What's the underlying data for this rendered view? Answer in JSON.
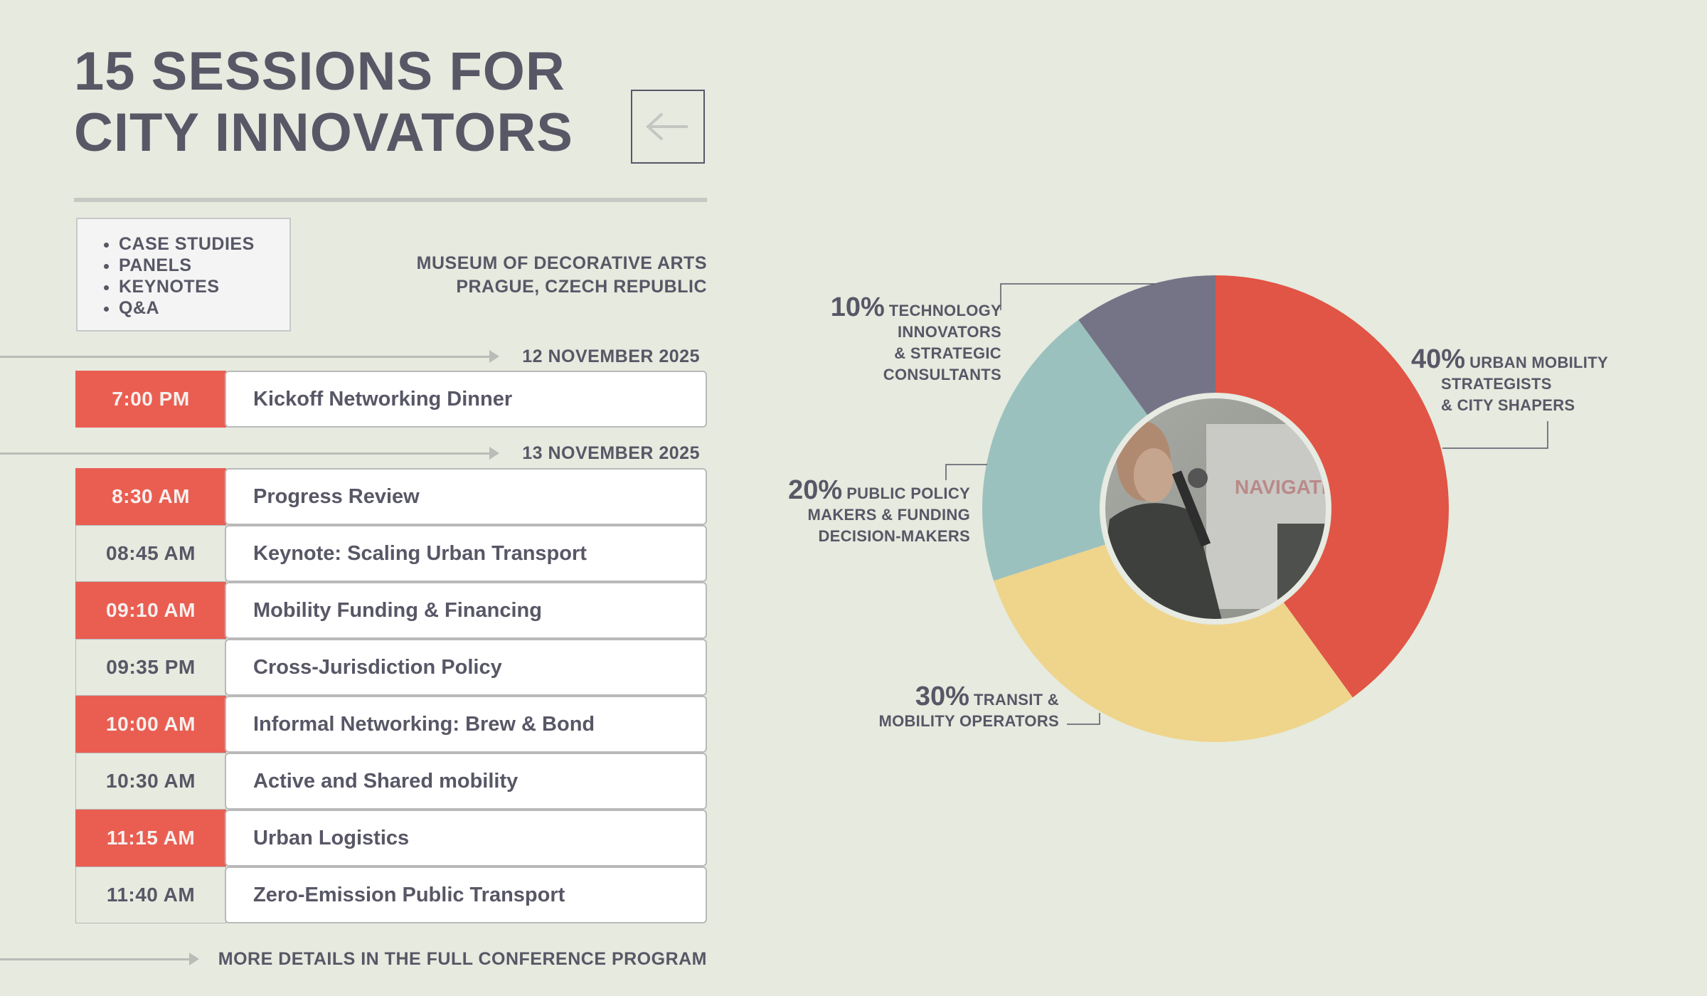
{
  "title": {
    "line1": "15 SESSIONS FOR",
    "line2": "CITY INNOVATORS"
  },
  "back_button": {
    "icon": "arrow-left-icon"
  },
  "session_types": [
    "CASE STUDIES",
    "PANELS",
    "KEYNOTES",
    "Q&A"
  ],
  "venue": {
    "line1": "MUSEUM OF DECORATIVE ARTS",
    "line2": "PRAGUE, CZECH REPUBLIC"
  },
  "days": [
    {
      "date": "12 NOVEMBER 2025",
      "sessions": [
        {
          "time": "7:00 PM",
          "name": "Kickoff Networking Dinner",
          "highlight": true
        }
      ]
    },
    {
      "date": "13 NOVEMBER 2025",
      "sessions": [
        {
          "time": "8:30 AM",
          "name": "Progress Review",
          "highlight": true
        },
        {
          "time": "08:45 AM",
          "name": "Keynote: Scaling Urban Transport",
          "highlight": false
        },
        {
          "time": "09:10 AM",
          "name": "Mobility Funding & Financing",
          "highlight": true
        },
        {
          "time": "09:35 PM",
          "name": "Cross-Jurisdiction Policy",
          "highlight": false
        },
        {
          "time": "10:00 AM",
          "name": "Informal Networking: Brew & Bond",
          "highlight": true
        },
        {
          "time": "10:30 AM",
          "name": "Active and Shared mobility",
          "highlight": false
        },
        {
          "time": "11:15 AM",
          "name": "Urban Logistics",
          "highlight": true
        },
        {
          "time": "11:40 AM",
          "name": "Zero-Emission Public Transport",
          "highlight": false
        }
      ]
    }
  ],
  "footer": {
    "more_label": "MORE DETAILS IN THE FULL CONFERENCE PROGRAM"
  },
  "colors": {
    "accent": "#ea5e52",
    "text": "#575766",
    "background": "#e6eadf",
    "chart": [
      "#e05545",
      "#efd48b",
      "#9bc1be",
      "#757487"
    ]
  },
  "chart_data": {
    "type": "pie",
    "variant": "donut",
    "slices": [
      {
        "value": 40,
        "pct_label": "40%",
        "label_lines": [
          "URBAN MOBILITY",
          "STRATEGISTS",
          "& CITY SHAPERS"
        ],
        "color": "#e05545"
      },
      {
        "value": 30,
        "pct_label": "30%",
        "label_lines": [
          "TRANSIT &",
          "MOBILITY OPERATORS"
        ],
        "color": "#efd48b"
      },
      {
        "value": 20,
        "pct_label": "20%",
        "label_lines": [
          "PUBLIC POLICY",
          "MAKERS & FUNDING",
          "DECISION-MAKERS"
        ],
        "color": "#9bc1be"
      },
      {
        "value": 10,
        "pct_label": "10%",
        "label_lines": [
          "TECHNOLOGY",
          "INNOVATORS",
          "& STRATEGIC",
          "CONSULTANTS"
        ],
        "color": "#757487"
      }
    ],
    "center_image": "speaker-photo",
    "center_photo_text": "NAVIGATE MO"
  }
}
